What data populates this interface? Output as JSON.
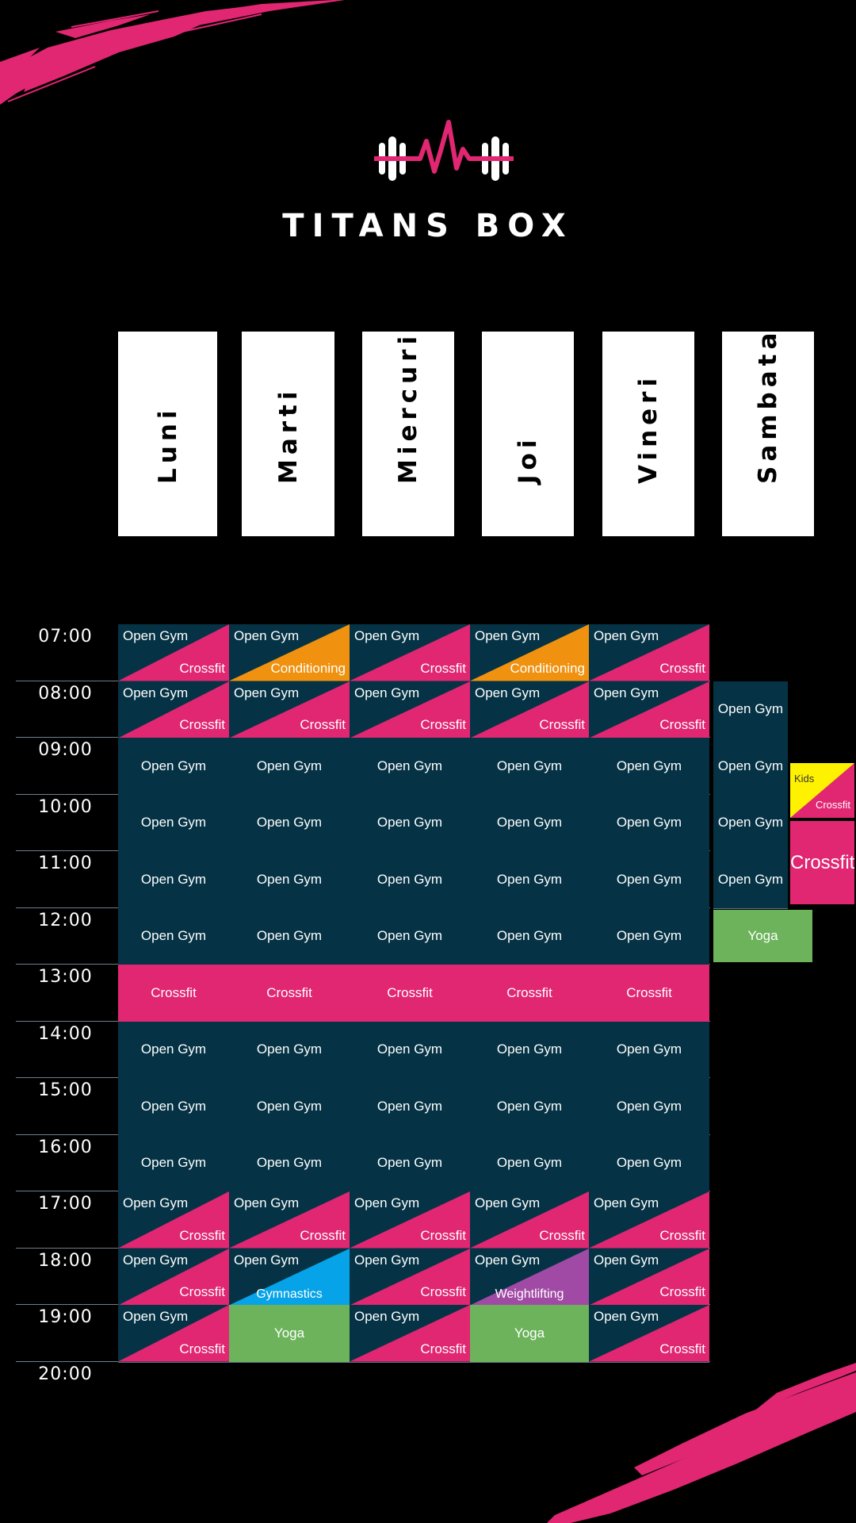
{
  "brand": {
    "name": "TITANS BOX",
    "logo": "barbell-heartbeat-icon"
  },
  "colors": {
    "background": "#000000",
    "open_gym": "#053345",
    "crossfit": "#e12672",
    "conditioning": "#f0910f",
    "gymnastics": "#06a3e8",
    "weightlifting": "#a14aa5",
    "yoga": "#6cb35b",
    "kids": "#fff200"
  },
  "days": [
    "Luni",
    "Marti",
    "Miercuri",
    "Joi",
    "Vineri",
    "Sambata"
  ],
  "times": [
    "07:00",
    "08:00",
    "09:00",
    "10:00",
    "11:00",
    "12:00",
    "13:00",
    "14:00",
    "15:00",
    "16:00",
    "17:00",
    "18:00",
    "19:00",
    "20:00"
  ],
  "weekday_schedule": [
    [
      {
        "type": "split",
        "top": "Open Gym",
        "bottom": "Crossfit",
        "color": "crossfit"
      },
      {
        "type": "split",
        "top": "Open Gym",
        "bottom": "Conditioning",
        "color": "conditioning"
      },
      {
        "type": "split",
        "top": "Open Gym",
        "bottom": "Crossfit",
        "color": "crossfit"
      },
      {
        "type": "split",
        "top": "Open Gym",
        "bottom": "Conditioning",
        "color": "conditioning"
      },
      {
        "type": "split",
        "top": "Open Gym",
        "bottom": "Crossfit",
        "color": "crossfit"
      }
    ],
    [
      {
        "type": "split",
        "top": "Open Gym",
        "bottom": "Crossfit",
        "color": "crossfit"
      },
      {
        "type": "split",
        "top": "Open Gym",
        "bottom": "Crossfit",
        "color": "crossfit"
      },
      {
        "type": "split",
        "top": "Open Gym",
        "bottom": "Crossfit",
        "color": "crossfit"
      },
      {
        "type": "split",
        "top": "Open Gym",
        "bottom": "Crossfit",
        "color": "crossfit"
      },
      {
        "type": "split",
        "top": "Open Gym",
        "bottom": "Crossfit",
        "color": "crossfit"
      }
    ],
    [
      {
        "type": "solid",
        "label": "Open Gym",
        "color": "open_gym"
      },
      {
        "type": "solid",
        "label": "Open Gym",
        "color": "open_gym"
      },
      {
        "type": "solid",
        "label": "Open Gym",
        "color": "open_gym"
      },
      {
        "type": "solid",
        "label": "Open Gym",
        "color": "open_gym"
      },
      {
        "type": "solid",
        "label": "Open Gym",
        "color": "open_gym"
      }
    ],
    [
      {
        "type": "solid",
        "label": "Open Gym",
        "color": "open_gym"
      },
      {
        "type": "solid",
        "label": "Open Gym",
        "color": "open_gym"
      },
      {
        "type": "solid",
        "label": "Open Gym",
        "color": "open_gym"
      },
      {
        "type": "solid",
        "label": "Open Gym",
        "color": "open_gym"
      },
      {
        "type": "solid",
        "label": "Open Gym",
        "color": "open_gym"
      }
    ],
    [
      {
        "type": "solid",
        "label": "Open Gym",
        "color": "open_gym"
      },
      {
        "type": "solid",
        "label": "Open Gym",
        "color": "open_gym"
      },
      {
        "type": "solid",
        "label": "Open Gym",
        "color": "open_gym"
      },
      {
        "type": "solid",
        "label": "Open Gym",
        "color": "open_gym"
      },
      {
        "type": "solid",
        "label": "Open Gym",
        "color": "open_gym"
      }
    ],
    [
      {
        "type": "solid",
        "label": "Open Gym",
        "color": "open_gym"
      },
      {
        "type": "solid",
        "label": "Open Gym",
        "color": "open_gym"
      },
      {
        "type": "solid",
        "label": "Open Gym",
        "color": "open_gym"
      },
      {
        "type": "solid",
        "label": "Open Gym",
        "color": "open_gym"
      },
      {
        "type": "solid",
        "label": "Open Gym",
        "color": "open_gym"
      }
    ],
    [
      {
        "type": "solid",
        "label": "Crossfit",
        "color": "crossfit"
      },
      {
        "type": "solid",
        "label": "Crossfit",
        "color": "crossfit"
      },
      {
        "type": "solid",
        "label": "Crossfit",
        "color": "crossfit"
      },
      {
        "type": "solid",
        "label": "Crossfit",
        "color": "crossfit"
      },
      {
        "type": "solid",
        "label": "Crossfit",
        "color": "crossfit"
      }
    ],
    [
      {
        "type": "solid",
        "label": "Open Gym",
        "color": "open_gym"
      },
      {
        "type": "solid",
        "label": "Open Gym",
        "color": "open_gym"
      },
      {
        "type": "solid",
        "label": "Open Gym",
        "color": "open_gym"
      },
      {
        "type": "solid",
        "label": "Open Gym",
        "color": "open_gym"
      },
      {
        "type": "solid",
        "label": "Open Gym",
        "color": "open_gym"
      }
    ],
    [
      {
        "type": "solid",
        "label": "Open Gym",
        "color": "open_gym"
      },
      {
        "type": "solid",
        "label": "Open Gym",
        "color": "open_gym"
      },
      {
        "type": "solid",
        "label": "Open Gym",
        "color": "open_gym"
      },
      {
        "type": "solid",
        "label": "Open Gym",
        "color": "open_gym"
      },
      {
        "type": "solid",
        "label": "Open Gym",
        "color": "open_gym"
      }
    ],
    [
      {
        "type": "solid",
        "label": "Open Gym",
        "color": "open_gym"
      },
      {
        "type": "solid",
        "label": "Open Gym",
        "color": "open_gym"
      },
      {
        "type": "solid",
        "label": "Open Gym",
        "color": "open_gym"
      },
      {
        "type": "solid",
        "label": "Open Gym",
        "color": "open_gym"
      },
      {
        "type": "solid",
        "label": "Open Gym",
        "color": "open_gym"
      }
    ],
    [
      {
        "type": "split",
        "top": "Open Gym",
        "bottom": "Crossfit",
        "color": "crossfit"
      },
      {
        "type": "split",
        "top": "Open Gym",
        "bottom": "Crossfit",
        "color": "crossfit"
      },
      {
        "type": "split",
        "top": "Open Gym",
        "bottom": "Crossfit",
        "color": "crossfit"
      },
      {
        "type": "split",
        "top": "Open Gym",
        "bottom": "Crossfit",
        "color": "crossfit"
      },
      {
        "type": "split",
        "top": "Open Gym",
        "bottom": "Crossfit",
        "color": "crossfit"
      }
    ],
    [
      {
        "type": "split",
        "top": "Open Gym",
        "bottom": "Crossfit",
        "color": "crossfit"
      },
      {
        "type": "split",
        "top": "Open Gym",
        "bottom": "Gymnastics",
        "color": "gymnastics"
      },
      {
        "type": "split",
        "top": "Open Gym",
        "bottom": "Crossfit",
        "color": "crossfit"
      },
      {
        "type": "split",
        "top": "Open Gym",
        "bottom": "Weightlifting",
        "color": "weightlifting"
      },
      {
        "type": "split",
        "top": "Open Gym",
        "bottom": "Crossfit",
        "color": "crossfit"
      }
    ],
    [
      {
        "type": "split",
        "top": "Open Gym",
        "bottom": "Crossfit",
        "color": "crossfit"
      },
      {
        "type": "solid",
        "label": "Yoga",
        "color": "yoga"
      },
      {
        "type": "split",
        "top": "Open Gym",
        "bottom": "Crossfit",
        "color": "crossfit"
      },
      {
        "type": "solid",
        "label": "Yoga",
        "color": "yoga"
      },
      {
        "type": "split",
        "top": "Open Gym",
        "bottom": "Crossfit",
        "color": "crossfit"
      }
    ]
  ],
  "saturday": {
    "open_gym": [
      "Open Gym",
      "Open Gym",
      "Open Gym",
      "Open Gym"
    ],
    "kids_crossfit": {
      "top": "Kids",
      "bottom": "Crossfit"
    },
    "crossfit": "Crossfit",
    "yoga": "Yoga"
  }
}
